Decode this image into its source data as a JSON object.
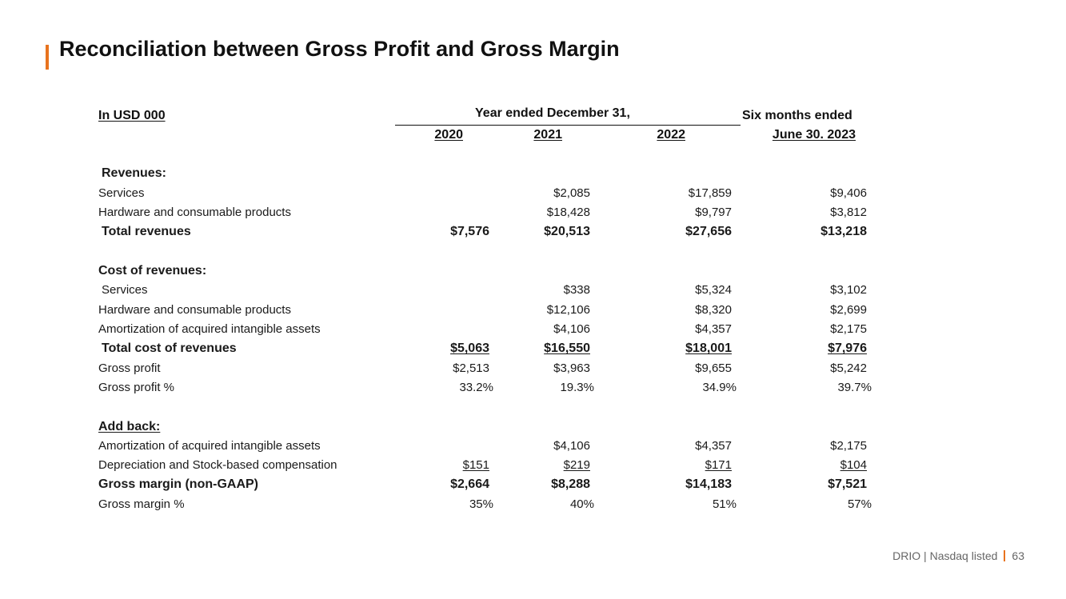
{
  "title": "Reconciliation between Gross Profit and Gross Margin",
  "colors": {
    "accent": "#e8731e"
  },
  "table": {
    "unit_label": "In USD 000",
    "year_group_label": "Year ended December 31,",
    "six_months_label_1": "Six months ended",
    "columns": [
      "2020",
      "2021",
      "2022",
      "June 30. 2023"
    ],
    "rows": [
      {
        "label": "Revenues:",
        "values": [
          "",
          "",
          "",
          ""
        ]
      },
      {
        "label": "Services",
        "values": [
          "",
          "$2,085",
          "$17,859",
          "$9,406"
        ]
      },
      {
        "label": "Hardware and consumable products",
        "values": [
          "",
          "$18,428",
          "$9,797",
          "$3,812"
        ]
      },
      {
        "label": "Total revenues",
        "values": [
          "$7,576",
          "$20,513",
          "$27,656",
          "$13,218"
        ]
      },
      {
        "label": "Cost of revenues:",
        "values": [
          "",
          "",
          "",
          ""
        ]
      },
      {
        "label": "Services",
        "values": [
          "",
          "$338",
          "$5,324",
          "$3,102"
        ]
      },
      {
        "label": "Hardware and consumable products",
        "values": [
          "",
          "$12,106",
          "$8,320",
          "$2,699"
        ]
      },
      {
        "label": "Amortization of acquired intangible assets",
        "values": [
          "",
          "$4,106",
          "$4,357",
          "$2,175"
        ]
      },
      {
        "label": "Total cost of revenues",
        "values": [
          "$5,063",
          "$16,550",
          "$18,001",
          "$7,976"
        ]
      },
      {
        "label": "Gross profit",
        "values": [
          "$2,513",
          "$3,963",
          "$9,655",
          "$5,242"
        ]
      },
      {
        "label": "Gross profit %",
        "values": [
          "33.2%",
          "19.3%",
          "34.9%",
          "39.7%"
        ]
      },
      {
        "label": "Add back:",
        "values": [
          "",
          "",
          "",
          ""
        ]
      },
      {
        "label": "Amortization of acquired intangible assets",
        "values": [
          "",
          "$4,106",
          "$4,357",
          "$2,175"
        ]
      },
      {
        "label": "Depreciation and Stock-based compensation",
        "values": [
          "$151",
          "$219",
          "$171",
          "$104"
        ]
      },
      {
        "label": "Gross margin (non-GAAP)",
        "values": [
          "$2,664",
          "$8,288",
          "$14,183",
          "$7,521"
        ]
      },
      {
        "label": "Gross margin %",
        "values": [
          "35%",
          "40%",
          "51%",
          "57%"
        ]
      }
    ]
  },
  "footer": {
    "company": "DRIO | Nasdaq listed",
    "page_number": "63"
  }
}
